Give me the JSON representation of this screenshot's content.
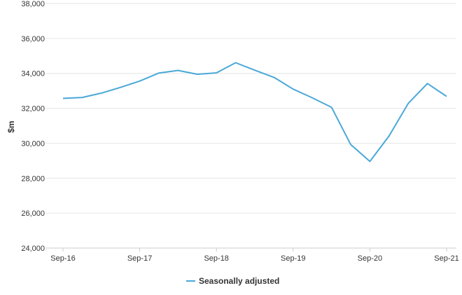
{
  "chart_data": {
    "type": "line",
    "ylabel": "$m",
    "ylim": [
      24000,
      38000
    ],
    "yticks": [
      "24,000",
      "26,000",
      "28,000",
      "30,000",
      "32,000",
      "34,000",
      "36,000",
      "38,000"
    ],
    "ytick_values": [
      24000,
      26000,
      28000,
      30000,
      32000,
      34000,
      36000,
      38000
    ],
    "xticks": [
      "Sep-16",
      "Sep-17",
      "Sep-18",
      "Sep-19",
      "Sep-20",
      "Sep-21"
    ],
    "x": [
      "Sep-16",
      "Dec-16",
      "Mar-17",
      "Jun-17",
      "Sep-17",
      "Dec-17",
      "Mar-18",
      "Jun-18",
      "Sep-18",
      "Dec-18",
      "Mar-19",
      "Jun-19",
      "Sep-19",
      "Dec-19",
      "Mar-20",
      "Jun-20",
      "Sep-20",
      "Dec-20",
      "Mar-21",
      "Jun-21",
      "Sep-21"
    ],
    "series": [
      {
        "name": "Seasonally adjusted",
        "color": "#4aa8d8",
        "values": [
          32570,
          32620,
          32870,
          33200,
          33560,
          34020,
          34170,
          33950,
          34030,
          34610,
          34180,
          33770,
          33100,
          32600,
          32060,
          29930,
          28960,
          30420,
          32280,
          33420,
          32680
        ]
      }
    ],
    "legend": {
      "position": "bottom"
    },
    "grid": "horizontal"
  }
}
